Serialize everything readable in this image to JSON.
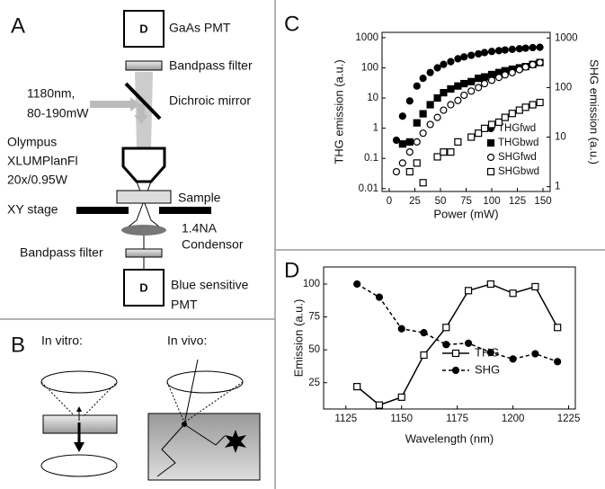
{
  "panels": {
    "a": "A",
    "b": "B",
    "c": "C",
    "d": "D"
  },
  "diagram_a": {
    "detector_top": "D",
    "detector_top_label": "GaAs PMT",
    "filter_top": "Bandpass filter",
    "mirror": "Dichroic mirror",
    "laser": [
      "1180nm,",
      "80-190mW"
    ],
    "objective": [
      "Olympus",
      "XLUMPlanFl",
      "20x/0.95W"
    ],
    "sample": "Sample",
    "stage": "XY stage",
    "condensor": [
      "1.4NA",
      "Condensor"
    ],
    "filter_bottom": "Bandpass filter",
    "detector_bottom": "D",
    "detector_bottom_label": [
      "Blue sensitive",
      "PMT"
    ]
  },
  "diagram_b": {
    "in_vitro": "In vitro:",
    "in_vivo": "In vivo:"
  },
  "chart_data": [
    {
      "type": "scatter",
      "xlabel": "Power (mW)",
      "ylabel": "THG emission (a.u.)",
      "y2label": "SHG emission (a.u.)",
      "xlim": [
        -7,
        157
      ],
      "xticks": [
        0,
        25,
        50,
        75,
        100,
        125,
        150
      ],
      "ylim": [
        0.008,
        1500
      ],
      "yticks": [
        0.01,
        0.1,
        1,
        10,
        100,
        1000
      ],
      "ylog": true,
      "y2lim": [
        0.8,
        1300
      ],
      "y2ticks": [
        1,
        10,
        100,
        1000
      ],
      "y2log": true,
      "legend": "lower right",
      "series": [
        {
          "name": "THGfwd",
          "color": "#000",
          "marker": "circle",
          "filled": true,
          "x": [
            7,
            13,
            20,
            27,
            33,
            40,
            47,
            53,
            60,
            67,
            73,
            80,
            87,
            93,
            100,
            107,
            113,
            120,
            127,
            133,
            140,
            147
          ],
          "values": [
            0.4,
            2.5,
            8,
            25,
            45,
            70,
            100,
            130,
            160,
            200,
            230,
            260,
            290,
            320,
            350,
            370,
            390,
            410,
            430,
            450,
            470,
            480
          ]
        },
        {
          "name": "THGbwd",
          "color": "#000",
          "marker": "square",
          "filled": true,
          "x": [
            13,
            20,
            27,
            33,
            40,
            47,
            53,
            60,
            67,
            73,
            80,
            87,
            93,
            100,
            107,
            113,
            120,
            127,
            133,
            140,
            147
          ],
          "values": [
            0.3,
            0.35,
            1.5,
            3,
            6,
            10,
            15,
            20,
            25,
            30,
            35,
            45,
            50,
            60,
            70,
            80,
            90,
            100,
            110,
            130,
            150
          ]
        },
        {
          "name": "SHGfwd",
          "color": "#000",
          "marker": "circle",
          "filled": false,
          "axis": "y2",
          "x": [
            7,
            13,
            20,
            27,
            33,
            40,
            47,
            53,
            60,
            67,
            73,
            80,
            87,
            93,
            100,
            107,
            113,
            120,
            127,
            133,
            140,
            147
          ],
          "values": [
            2,
            3,
            5,
            8,
            12,
            18,
            25,
            35,
            45,
            55,
            70,
            85,
            100,
            120,
            140,
            160,
            180,
            200,
            230,
            260,
            290,
            320
          ]
        },
        {
          "name": "SHGbwd",
          "color": "#000",
          "marker": "square",
          "filled": false,
          "axis": "y2",
          "x": [
            20,
            27,
            33,
            47,
            53,
            60,
            67,
            80,
            87,
            93,
            100,
            107,
            113,
            120,
            127,
            133,
            140,
            147
          ],
          "values": [
            2,
            3,
            1.2,
            4,
            5,
            5,
            8,
            10,
            12,
            15,
            18,
            20,
            25,
            30,
            35,
            40,
            45,
            50
          ]
        }
      ]
    },
    {
      "type": "line",
      "xlabel": "Wavelength (nm)",
      "ylabel": "Emission (a.u.)",
      "xlim": [
        1115,
        1228
      ],
      "xticks": [
        1125,
        1150,
        1175,
        1200,
        1225
      ],
      "ylim": [
        5,
        113
      ],
      "yticks": [
        25,
        50,
        75,
        100
      ],
      "legend": "lower right",
      "series": [
        {
          "name": "THG",
          "color": "#000",
          "marker": "square",
          "filled": false,
          "linestyle": "solid",
          "x": [
            1130,
            1140,
            1150,
            1160,
            1170,
            1180,
            1190,
            1200,
            1210,
            1220
          ],
          "values": [
            22,
            8,
            14,
            46,
            67,
            95,
            100,
            93,
            98,
            67
          ]
        },
        {
          "name": "SHG",
          "color": "#000",
          "marker": "circle",
          "filled": true,
          "linestyle": "dashed",
          "x": [
            1130,
            1140,
            1150,
            1160,
            1170,
            1180,
            1190,
            1200,
            1210,
            1220
          ],
          "values": [
            100,
            90,
            66,
            63,
            54,
            55,
            48,
            43,
            47,
            41
          ]
        }
      ]
    }
  ]
}
